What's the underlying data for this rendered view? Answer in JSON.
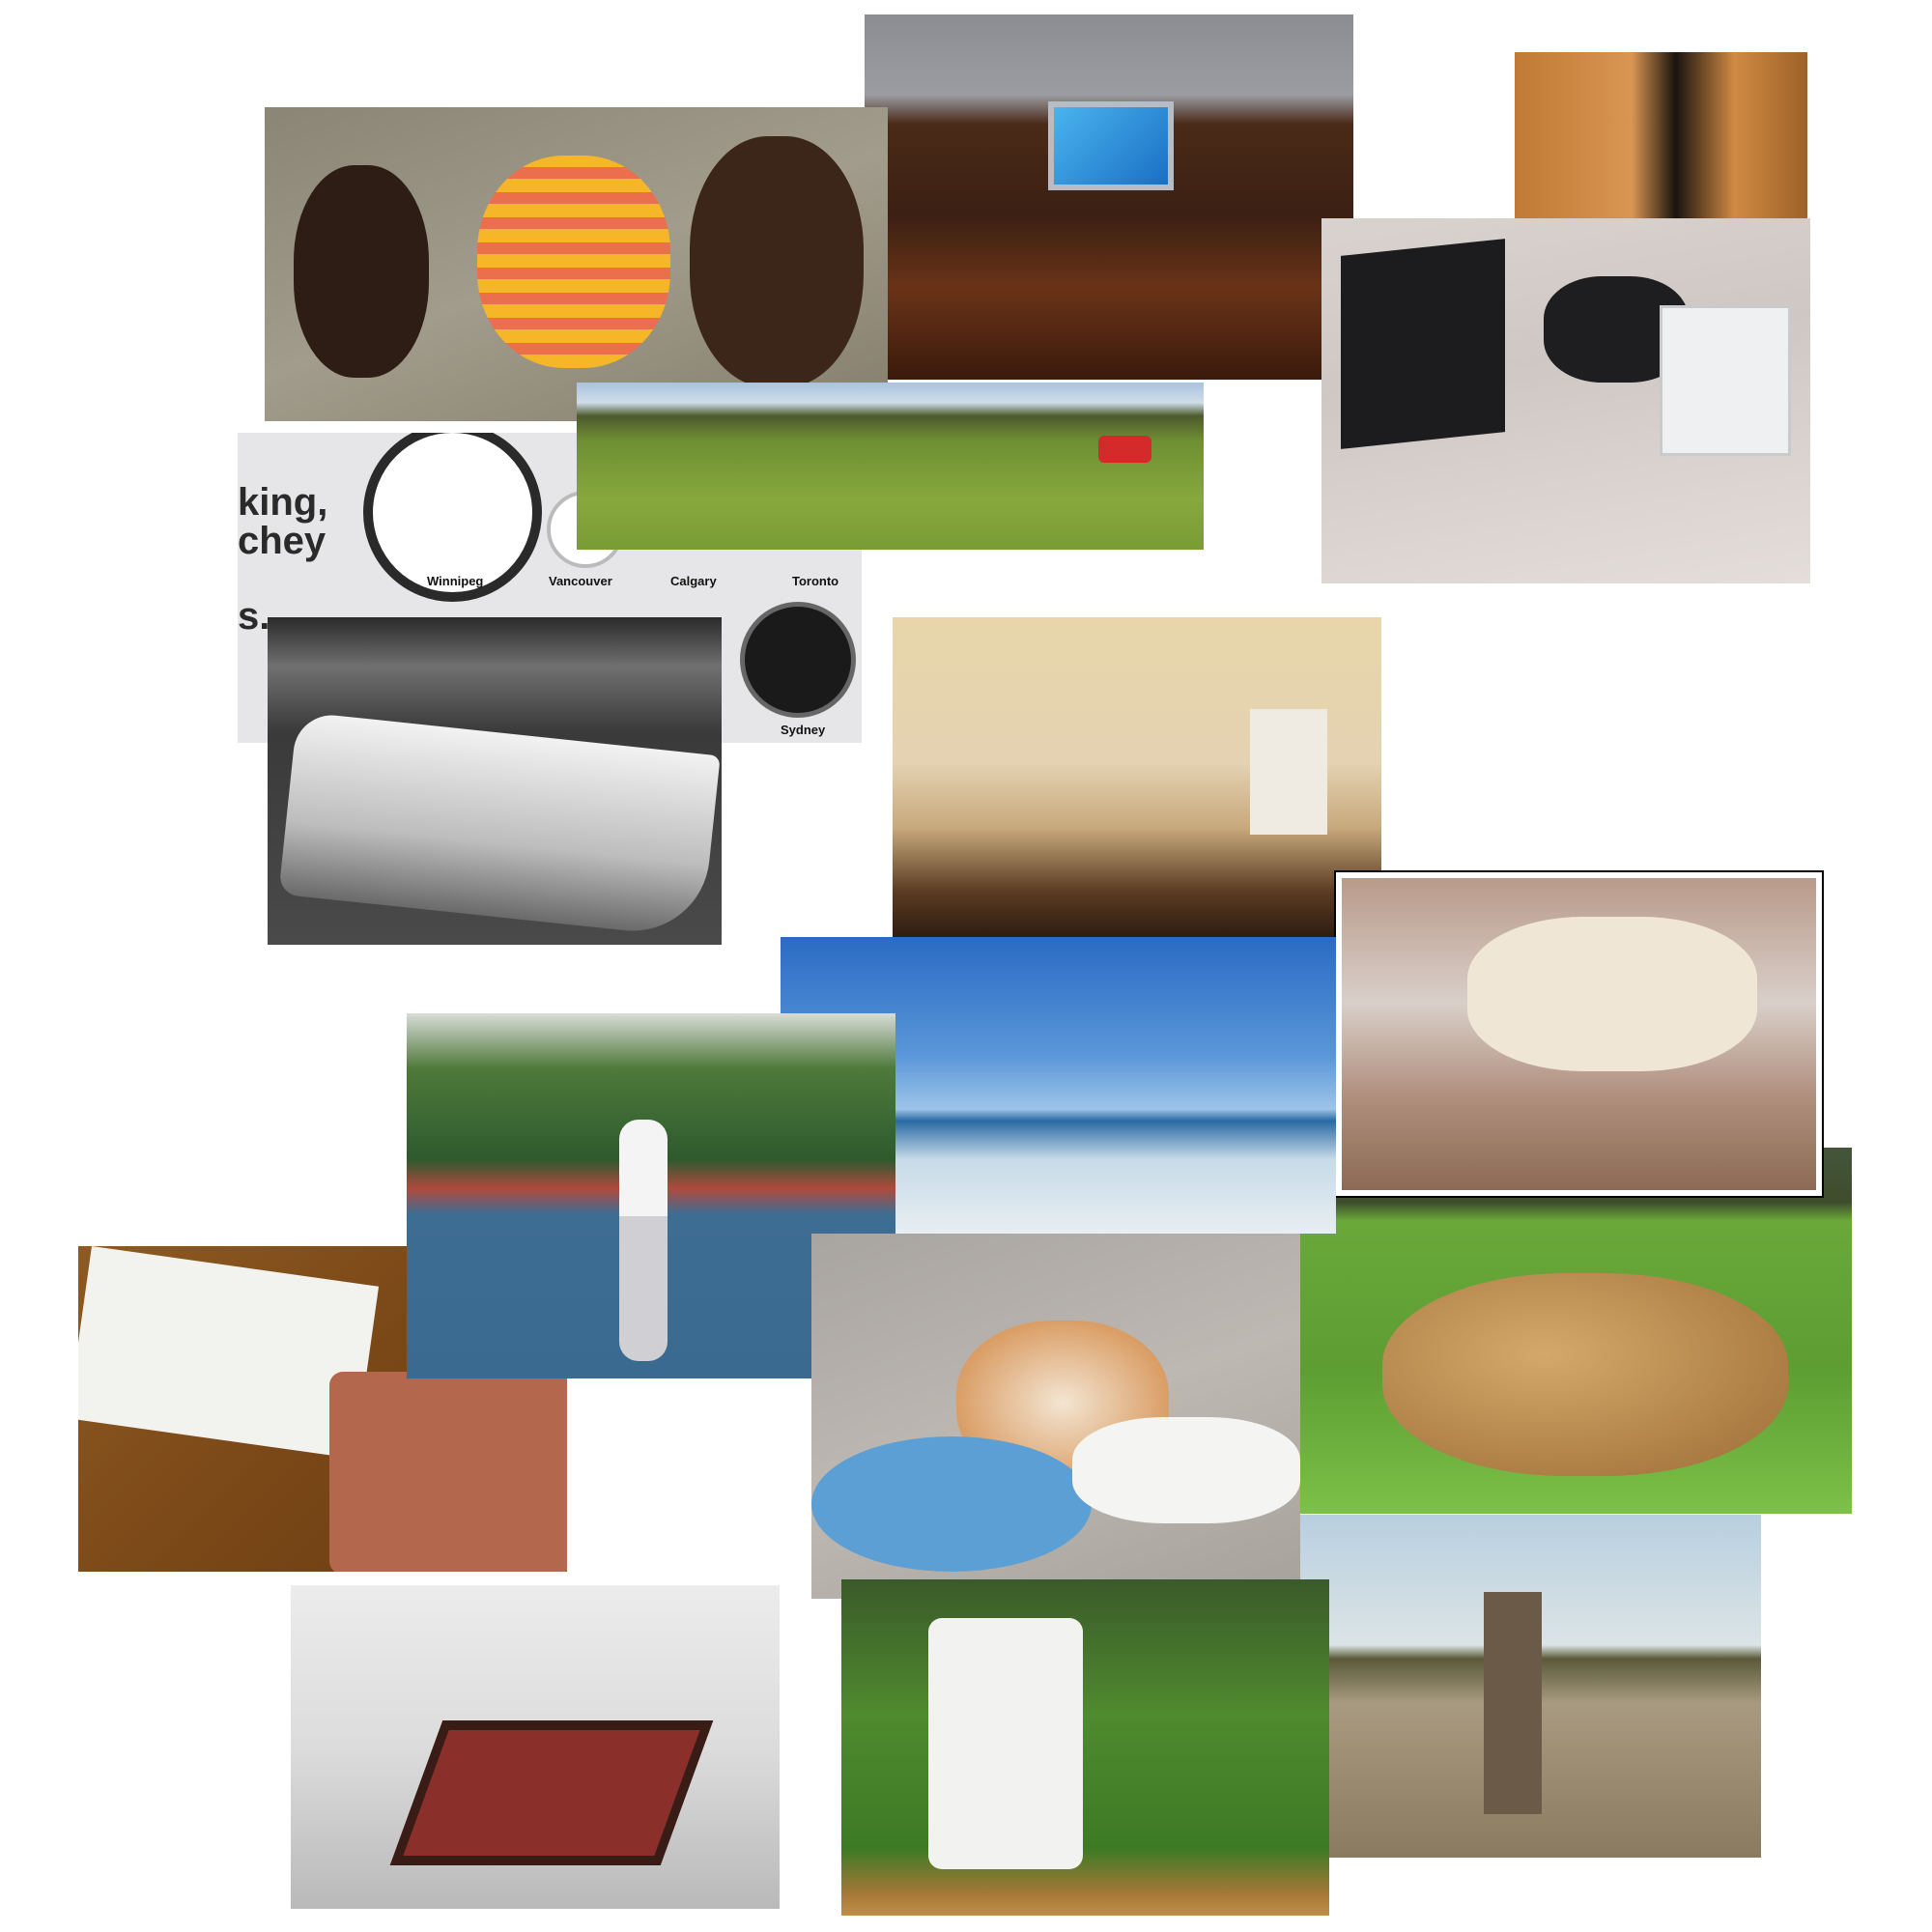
{
  "clock_photo": {
    "cities": [
      "Winnipeg",
      "Vancouver",
      "Calgary",
      "Toronto",
      "Sydney"
    ],
    "slogan": [
      "king,",
      "chey",
      "s."
    ]
  }
}
